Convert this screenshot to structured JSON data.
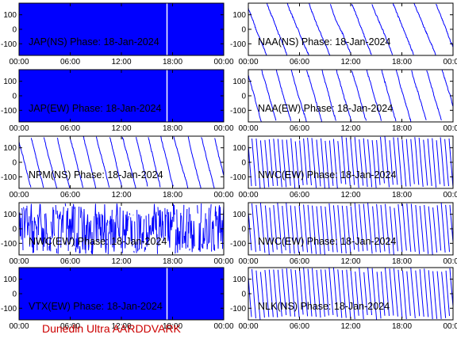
{
  "chart_data": {
    "type": "line",
    "credit": "Dunedin Ultra AARDDVARK",
    "x_ticks": [
      "00:00",
      "06:00",
      "12:00",
      "18:00",
      "00:00"
    ],
    "y_ticks": [
      "100",
      "0",
      "-100"
    ],
    "xlim_hours": [
      0,
      24
    ],
    "ylim": [
      -180,
      180
    ],
    "panels": [
      {
        "id": "jap-ns",
        "title": "JAP(NS) Phase: 18-Jan-2024",
        "style": "dense"
      },
      {
        "id": "naa-ns",
        "title": "NAA(NS) Phase: 18-Jan-2024",
        "style": "sawtooth"
      },
      {
        "id": "jap-ew",
        "title": "JAP(EW) Phase: 18-Jan-2024",
        "style": "dense"
      },
      {
        "id": "naa-ew",
        "title": "NAA(EW) Phase: 18-Jan-2024",
        "style": "sawtooth"
      },
      {
        "id": "npm-ns",
        "title": "NPM(NS) Phase: 18-Jan-2024",
        "style": "sawtooth"
      },
      {
        "id": "nwc-ew-a",
        "title": "NWC(EW) Phase: 18-Jan-2024",
        "style": "fast-sawtooth"
      },
      {
        "id": "nwc-ew",
        "title": "NWC(EW) Phase: 18-Jan-2024",
        "style": "noise"
      },
      {
        "id": "nwc-ew-b",
        "title": "NWC(EW) Phase: 18-Jan-2024",
        "style": "fast-sawtooth"
      },
      {
        "id": "vtx-ew",
        "title": "VTX(EW) Phase: 18-Jan-2024",
        "style": "dense"
      },
      {
        "id": "nlk-ns",
        "title": "NLK(NS) Phase: 18-Jan-2024",
        "style": "fast-sawtooth"
      }
    ]
  },
  "colors": {
    "trace": "#0000ff",
    "credit": "#cc0000",
    "axis": "#000000"
  }
}
